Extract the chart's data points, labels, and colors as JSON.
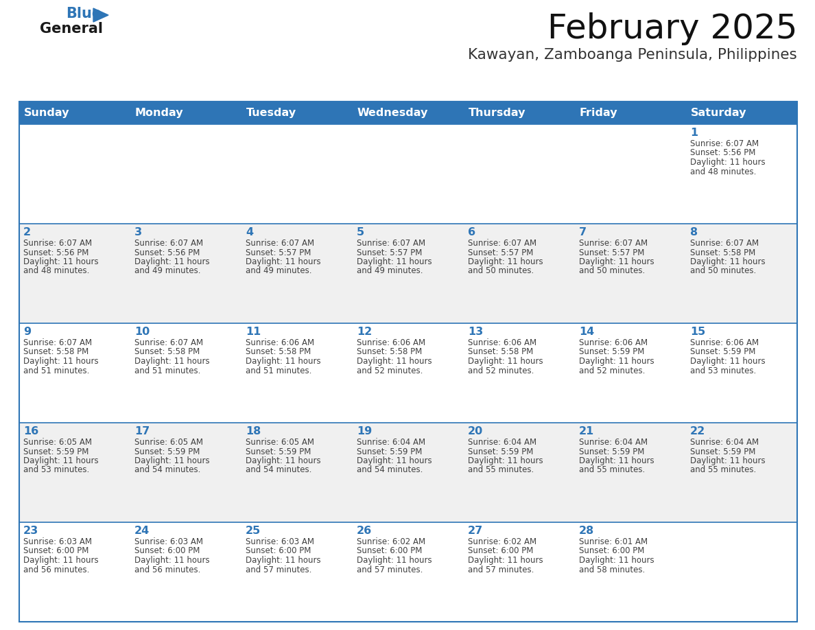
{
  "title": "February 2025",
  "subtitle": "Kawayan, Zamboanga Peninsula, Philippines",
  "header_bg_color": "#2E75B6",
  "header_text_color": "#FFFFFF",
  "cell_bg_even": "#FFFFFF",
  "cell_bg_odd": "#F0F0F0",
  "day_number_color": "#2E75B6",
  "cell_text_color": "#404040",
  "border_color": "#2E75B6",
  "separator_color": "#2E75B6",
  "days_of_week": [
    "Sunday",
    "Monday",
    "Tuesday",
    "Wednesday",
    "Thursday",
    "Friday",
    "Saturday"
  ],
  "calendar_data": [
    [
      null,
      null,
      null,
      null,
      null,
      null,
      {
        "day": 1,
        "sunrise": "6:07 AM",
        "sunset": "5:56 PM",
        "daylight_hours": 11,
        "daylight_minutes": 48
      }
    ],
    [
      {
        "day": 2,
        "sunrise": "6:07 AM",
        "sunset": "5:56 PM",
        "daylight_hours": 11,
        "daylight_minutes": 48
      },
      {
        "day": 3,
        "sunrise": "6:07 AM",
        "sunset": "5:56 PM",
        "daylight_hours": 11,
        "daylight_minutes": 49
      },
      {
        "day": 4,
        "sunrise": "6:07 AM",
        "sunset": "5:57 PM",
        "daylight_hours": 11,
        "daylight_minutes": 49
      },
      {
        "day": 5,
        "sunrise": "6:07 AM",
        "sunset": "5:57 PM",
        "daylight_hours": 11,
        "daylight_minutes": 49
      },
      {
        "day": 6,
        "sunrise": "6:07 AM",
        "sunset": "5:57 PM",
        "daylight_hours": 11,
        "daylight_minutes": 50
      },
      {
        "day": 7,
        "sunrise": "6:07 AM",
        "sunset": "5:57 PM",
        "daylight_hours": 11,
        "daylight_minutes": 50
      },
      {
        "day": 8,
        "sunrise": "6:07 AM",
        "sunset": "5:58 PM",
        "daylight_hours": 11,
        "daylight_minutes": 50
      }
    ],
    [
      {
        "day": 9,
        "sunrise": "6:07 AM",
        "sunset": "5:58 PM",
        "daylight_hours": 11,
        "daylight_minutes": 51
      },
      {
        "day": 10,
        "sunrise": "6:07 AM",
        "sunset": "5:58 PM",
        "daylight_hours": 11,
        "daylight_minutes": 51
      },
      {
        "day": 11,
        "sunrise": "6:06 AM",
        "sunset": "5:58 PM",
        "daylight_hours": 11,
        "daylight_minutes": 51
      },
      {
        "day": 12,
        "sunrise": "6:06 AM",
        "sunset": "5:58 PM",
        "daylight_hours": 11,
        "daylight_minutes": 52
      },
      {
        "day": 13,
        "sunrise": "6:06 AM",
        "sunset": "5:58 PM",
        "daylight_hours": 11,
        "daylight_minutes": 52
      },
      {
        "day": 14,
        "sunrise": "6:06 AM",
        "sunset": "5:59 PM",
        "daylight_hours": 11,
        "daylight_minutes": 52
      },
      {
        "day": 15,
        "sunrise": "6:06 AM",
        "sunset": "5:59 PM",
        "daylight_hours": 11,
        "daylight_minutes": 53
      }
    ],
    [
      {
        "day": 16,
        "sunrise": "6:05 AM",
        "sunset": "5:59 PM",
        "daylight_hours": 11,
        "daylight_minutes": 53
      },
      {
        "day": 17,
        "sunrise": "6:05 AM",
        "sunset": "5:59 PM",
        "daylight_hours": 11,
        "daylight_minutes": 54
      },
      {
        "day": 18,
        "sunrise": "6:05 AM",
        "sunset": "5:59 PM",
        "daylight_hours": 11,
        "daylight_minutes": 54
      },
      {
        "day": 19,
        "sunrise": "6:04 AM",
        "sunset": "5:59 PM",
        "daylight_hours": 11,
        "daylight_minutes": 54
      },
      {
        "day": 20,
        "sunrise": "6:04 AM",
        "sunset": "5:59 PM",
        "daylight_hours": 11,
        "daylight_minutes": 55
      },
      {
        "day": 21,
        "sunrise": "6:04 AM",
        "sunset": "5:59 PM",
        "daylight_hours": 11,
        "daylight_minutes": 55
      },
      {
        "day": 22,
        "sunrise": "6:04 AM",
        "sunset": "5:59 PM",
        "daylight_hours": 11,
        "daylight_minutes": 55
      }
    ],
    [
      {
        "day": 23,
        "sunrise": "6:03 AM",
        "sunset": "6:00 PM",
        "daylight_hours": 11,
        "daylight_minutes": 56
      },
      {
        "day": 24,
        "sunrise": "6:03 AM",
        "sunset": "6:00 PM",
        "daylight_hours": 11,
        "daylight_minutes": 56
      },
      {
        "day": 25,
        "sunrise": "6:03 AM",
        "sunset": "6:00 PM",
        "daylight_hours": 11,
        "daylight_minutes": 57
      },
      {
        "day": 26,
        "sunrise": "6:02 AM",
        "sunset": "6:00 PM",
        "daylight_hours": 11,
        "daylight_minutes": 57
      },
      {
        "day": 27,
        "sunrise": "6:02 AM",
        "sunset": "6:00 PM",
        "daylight_hours": 11,
        "daylight_minutes": 57
      },
      {
        "day": 28,
        "sunrise": "6:01 AM",
        "sunset": "6:00 PM",
        "daylight_hours": 11,
        "daylight_minutes": 58
      },
      null
    ]
  ]
}
